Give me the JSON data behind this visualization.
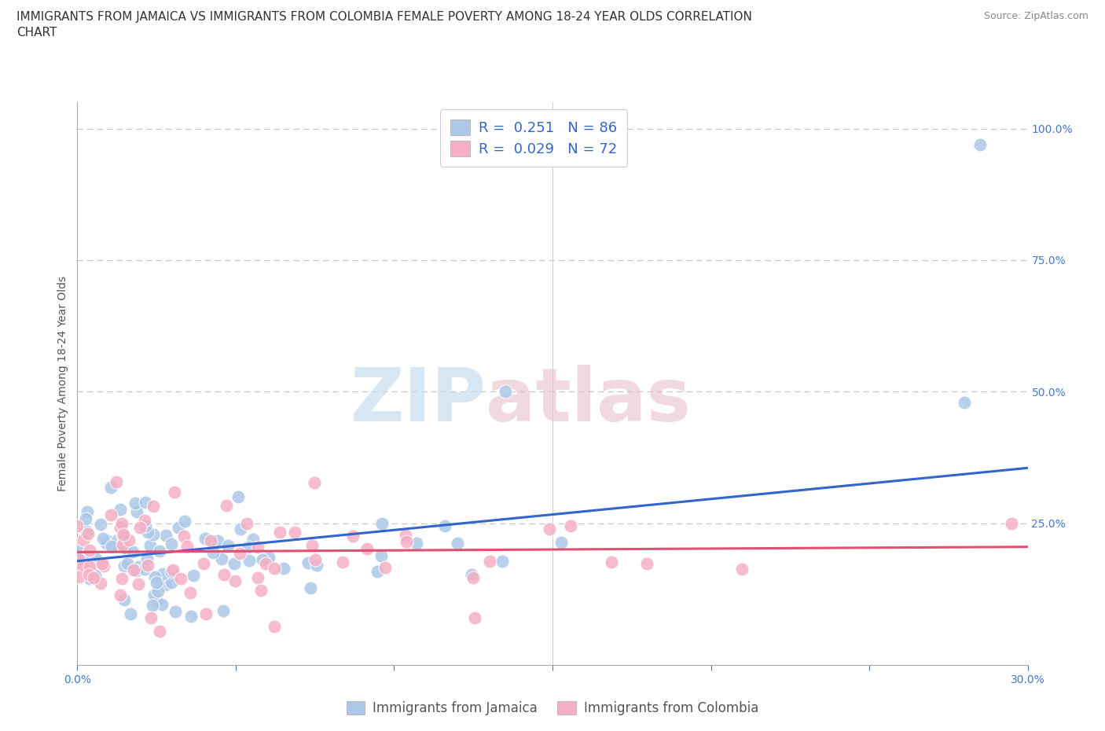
{
  "title": "IMMIGRANTS FROM JAMAICA VS IMMIGRANTS FROM COLOMBIA FEMALE POVERTY AMONG 18-24 YEAR OLDS CORRELATION\nCHART",
  "source": "Source: ZipAtlas.com",
  "ylabel": "Female Poverty Among 18-24 Year Olds",
  "xlim": [
    0.0,
    0.3
  ],
  "ylim": [
    -0.02,
    1.05
  ],
  "xticks": [
    0.0,
    0.05,
    0.1,
    0.15,
    0.2,
    0.25,
    0.3
  ],
  "xticklabels": [
    "0.0%",
    "",
    "",
    "",
    "",
    "",
    "30.0%"
  ],
  "yticks_right": [
    0.25,
    0.5,
    0.75,
    1.0
  ],
  "yticklabels_right": [
    "25.0%",
    "50.0%",
    "75.0%",
    "100.0%"
  ],
  "jamaica_color": "#adc8e8",
  "colombia_color": "#f5afc4",
  "jamaica_line_color": "#3366cc",
  "colombia_line_color": "#e05070",
  "jamaica_R": 0.251,
  "jamaica_N": 86,
  "colombia_R": 0.029,
  "colombia_N": 72,
  "legend_label_jamaica": "Immigrants from Jamaica",
  "legend_label_colombia": "Immigrants from Colombia",
  "watermark_zip": "ZIP",
  "watermark_atlas": "atlas",
  "background_color": "#ffffff",
  "title_fontsize": 11,
  "axis_label_fontsize": 10,
  "tick_fontsize": 10,
  "legend_fontsize": 12
}
